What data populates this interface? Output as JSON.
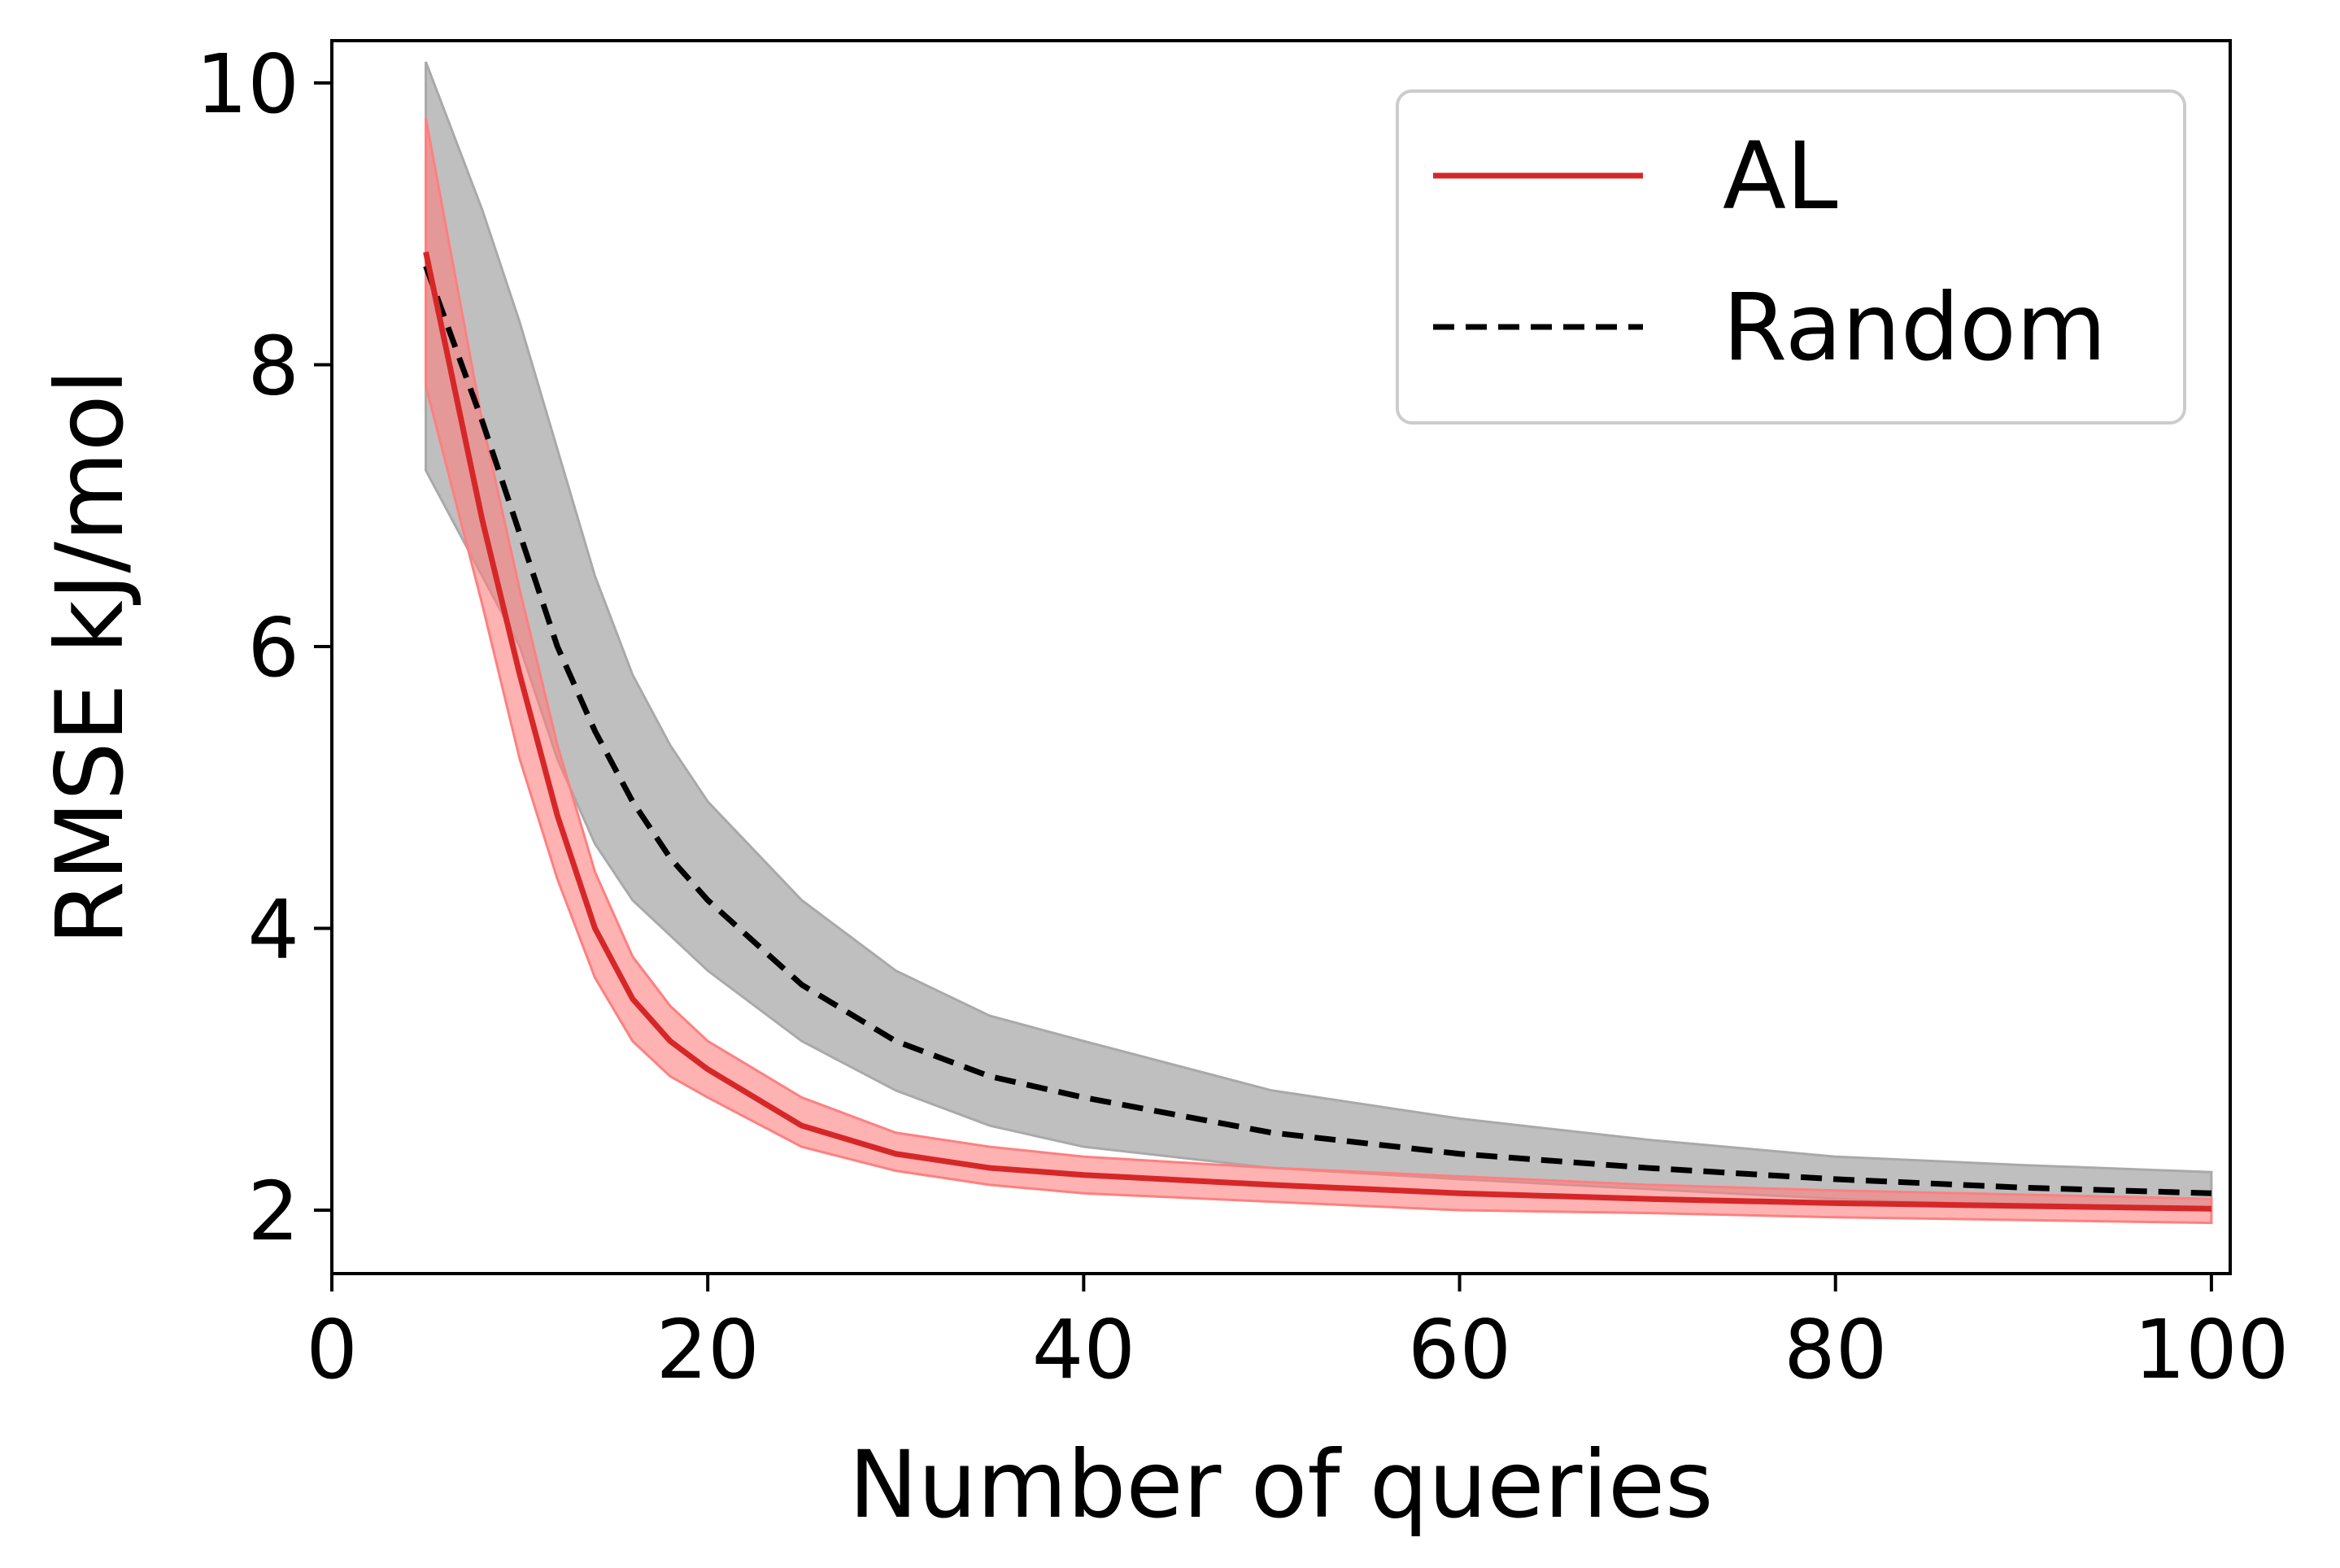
{
  "chart_data": {
    "type": "line",
    "xlabel": "Number of queries",
    "ylabel": "RMSE kJ/mol",
    "xlim": [
      0,
      101
    ],
    "ylim": [
      1.55,
      10.3
    ],
    "xticks": [
      0,
      20,
      40,
      60,
      80,
      100
    ],
    "yticks": [
      2,
      4,
      6,
      8,
      10
    ],
    "xtick_labels": [
      "0",
      "20",
      "40",
      "60",
      "80",
      "100"
    ],
    "ytick_labels": [
      "2",
      "4",
      "6",
      "8",
      "10"
    ],
    "grid": false,
    "legend_position": "top-right",
    "x": [
      5,
      8,
      10,
      12,
      14,
      16,
      18,
      20,
      25,
      30,
      35,
      40,
      50,
      60,
      70,
      80,
      90,
      100
    ],
    "series": [
      {
        "name": "AL",
        "color": "#d62728",
        "band_color": "#ff7f7f",
        "style": "solid",
        "values": [
          8.8,
          6.9,
          5.8,
          4.8,
          4.0,
          3.5,
          3.2,
          3.0,
          2.6,
          2.4,
          2.3,
          2.25,
          2.18,
          2.12,
          2.08,
          2.05,
          2.03,
          2.01
        ],
        "upper": [
          9.75,
          7.6,
          6.4,
          5.3,
          4.4,
          3.8,
          3.45,
          3.2,
          2.8,
          2.55,
          2.45,
          2.38,
          2.3,
          2.24,
          2.18,
          2.14,
          2.11,
          2.08
        ],
        "lower": [
          7.85,
          6.3,
          5.2,
          4.35,
          3.65,
          3.2,
          2.95,
          2.8,
          2.45,
          2.28,
          2.18,
          2.12,
          2.06,
          2.0,
          1.98,
          1.95,
          1.93,
          1.91
        ]
      },
      {
        "name": "Random",
        "color": "#000000",
        "band_color": "#a9a9a9",
        "style": "dashed",
        "values": [
          8.7,
          7.6,
          6.8,
          6.0,
          5.4,
          4.9,
          4.5,
          4.2,
          3.6,
          3.2,
          2.95,
          2.8,
          2.55,
          2.4,
          2.3,
          2.22,
          2.16,
          2.12
        ],
        "upper": [
          10.15,
          9.1,
          8.3,
          7.4,
          6.5,
          5.8,
          5.3,
          4.9,
          4.2,
          3.7,
          3.38,
          3.2,
          2.85,
          2.65,
          2.5,
          2.38,
          2.32,
          2.27
        ],
        "lower": [
          7.25,
          6.5,
          6.0,
          5.2,
          4.6,
          4.2,
          3.95,
          3.7,
          3.2,
          2.85,
          2.6,
          2.45,
          2.3,
          2.22,
          2.15,
          2.08,
          2.03,
          2.0
        ]
      }
    ]
  }
}
